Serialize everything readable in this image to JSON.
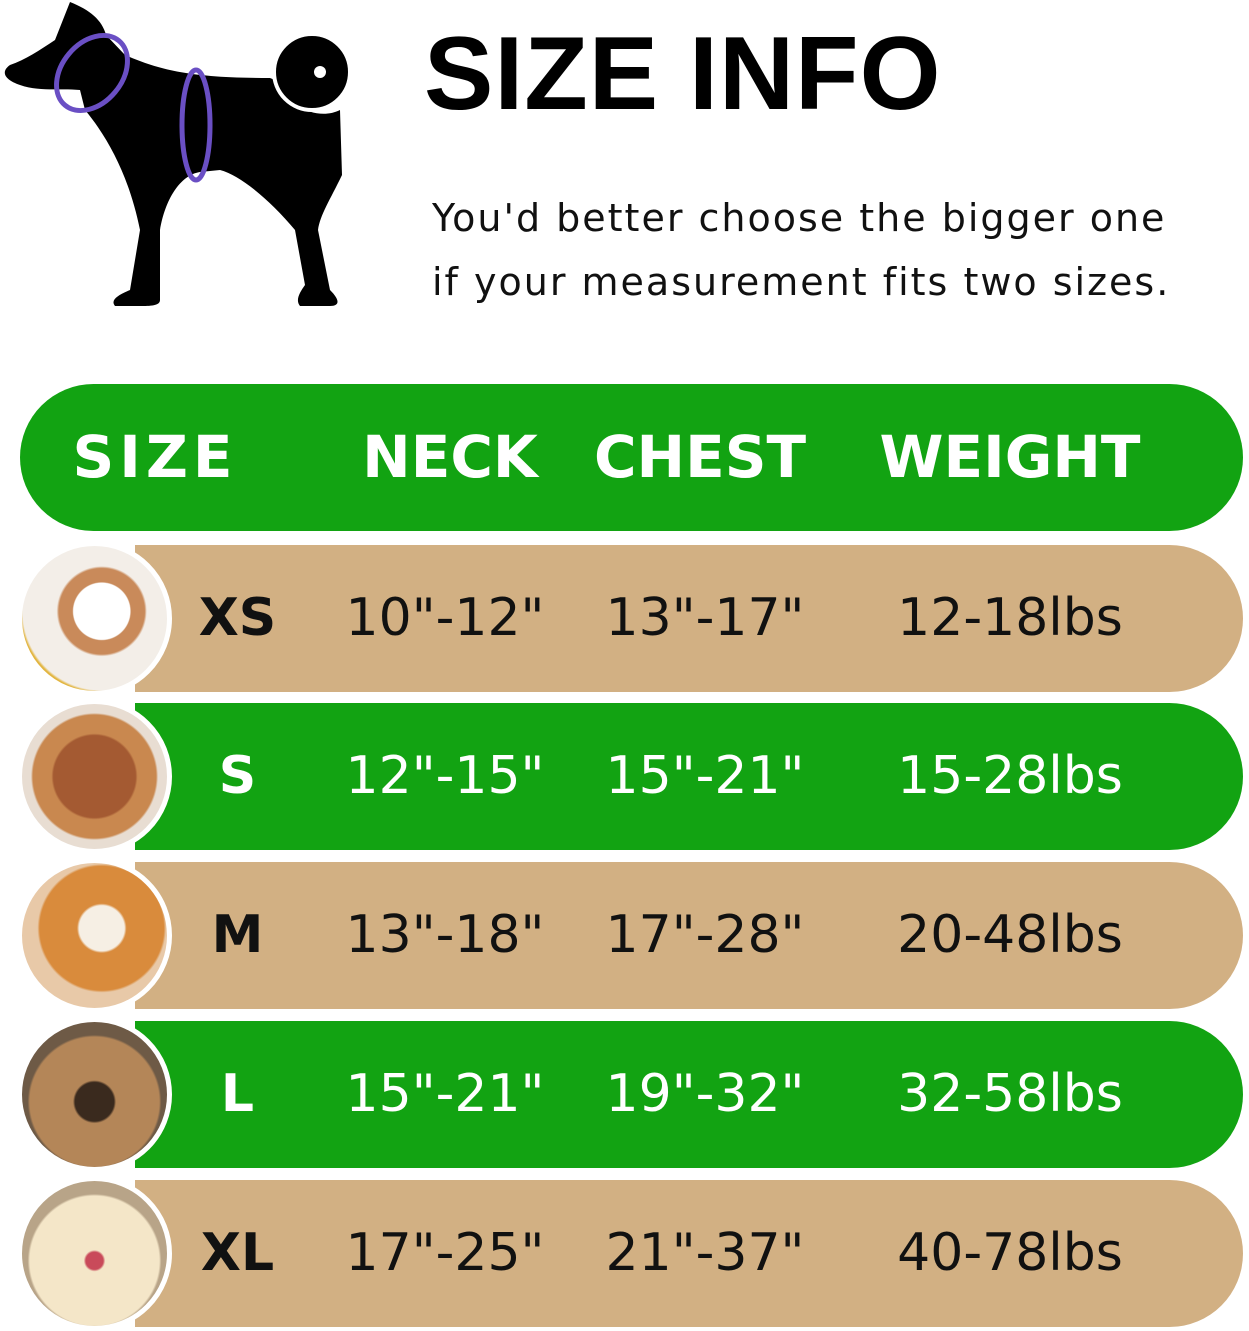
{
  "title": "SIZE INFO",
  "subtitle_line1": "You'd better choose the bigger one",
  "subtitle_line2": "if your measurement fits two sizes.",
  "colors": {
    "green": "#12a312",
    "tan": "#d2b083",
    "measure_ring": "#6a4fc4"
  },
  "icons": [
    "dog-silhouette-measurement-icon"
  ],
  "table": {
    "headers": [
      "SIZE",
      "NECK",
      "CHEST",
      "WEIGHT"
    ],
    "rows": [
      {
        "size": "XS",
        "neck": "10\"-12\"",
        "chest": "13\"-17\"",
        "weight": "12-18lbs",
        "color": "tan",
        "photo": "pomeranian"
      },
      {
        "size": "S",
        "neck": "12\"-15\"",
        "chest": "15\"-21\"",
        "weight": "15-28lbs",
        "color": "green",
        "photo": "poodle"
      },
      {
        "size": "M",
        "neck": "13\"-18\"",
        "chest": "17\"-28\"",
        "weight": "20-48lbs",
        "color": "tan",
        "photo": "shiba-inu"
      },
      {
        "size": "L",
        "neck": "15\"-21\"",
        "chest": "19\"-32\"",
        "weight": "32-58lbs",
        "color": "green",
        "photo": "french-bulldog"
      },
      {
        "size": "XL",
        "neck": "17\"-25\"",
        "chest": "21\"-37\"",
        "weight": "40-78lbs",
        "color": "tan",
        "photo": "labrador"
      }
    ]
  }
}
